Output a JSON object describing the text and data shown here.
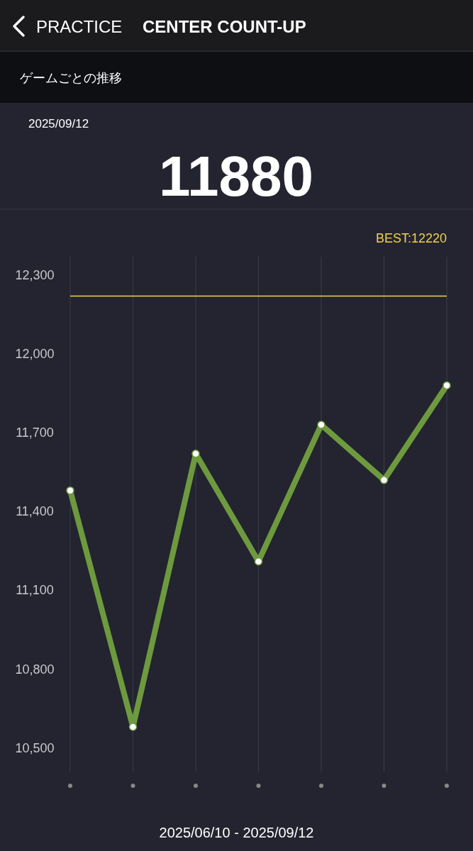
{
  "chart_data": {
    "type": "line",
    "title": "CENTER COUNT-UP",
    "subtitle": "ゲームごとの推移",
    "xlabel": "2025/06/10 - 2025/09/12",
    "annotations": [
      "PRACTICE",
      "2025/09/12",
      "11880"
    ],
    "categories": [
      null,
      null,
      null,
      null,
      null,
      null,
      null
    ],
    "series": [
      {
        "color": "#6e9a3f",
        "values": [
          11480,
          10580,
          11620,
          11210,
          11730,
          11520,
          11880
        ]
      }
    ],
    "ylim": [
      10410,
      12370
    ],
    "yticks": [
      {
        "value": 10500,
        "label": "10,500"
      },
      {
        "value": 10800,
        "label": "10,800"
      },
      {
        "value": 11100,
        "label": "11,100"
      },
      {
        "value": 11400,
        "label": "11,400"
      },
      {
        "value": 11700,
        "label": "11,700"
      },
      {
        "value": 12000,
        "label": "12,000"
      },
      {
        "value": 12300,
        "label": "12,300"
      }
    ],
    "ref_lines": [
      {
        "axis": "y",
        "value": 12220,
        "label": "BEST:12220",
        "color": "#f2d14b",
        "line_style": "solid"
      }
    ],
    "grid": "x",
    "marker": "circle",
    "line_style": "solid"
  }
}
